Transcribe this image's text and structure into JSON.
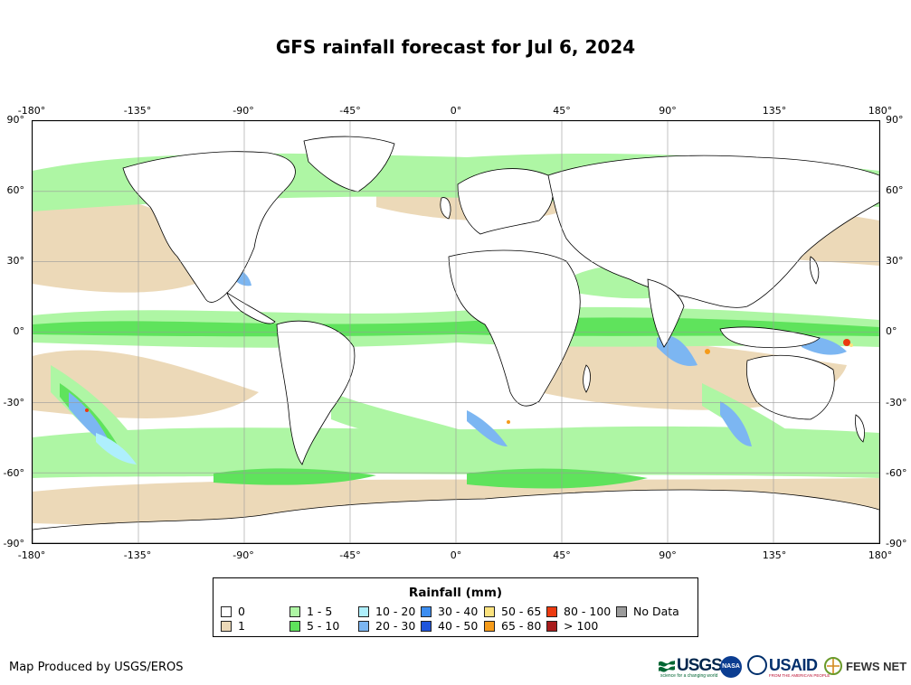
{
  "title": "GFS rainfall forecast for Jul 6, 2024",
  "axes": {
    "lon_range": [
      -180,
      180
    ],
    "lat_range": [
      -90,
      90
    ],
    "lon_ticks": [
      "-180°",
      "-135°",
      "-90°",
      "-45°",
      "0°",
      "45°",
      "90°",
      "135°",
      "180°"
    ],
    "lat_ticks": [
      "90°",
      "60°",
      "30°",
      "0°",
      "-30°",
      "-60°",
      "-90°"
    ],
    "grid": true
  },
  "legend": {
    "title": "Rainfall (mm)",
    "placement": "bottom-center",
    "items": [
      {
        "label": "0",
        "color": "#ffffff"
      },
      {
        "label": "1",
        "color": "#ecd9b8"
      },
      {
        "label": "1 - 5",
        "color": "#aef6a4"
      },
      {
        "label": "5 - 10",
        "color": "#5fe35c"
      },
      {
        "label": "10 - 20",
        "color": "#aeeffc"
      },
      {
        "label": "20 - 30",
        "color": "#7cb6f2"
      },
      {
        "label": "30 - 40",
        "color": "#3c8df0"
      },
      {
        "label": "40 - 50",
        "color": "#1f55dc"
      },
      {
        "label": "50 - 65",
        "color": "#fbe27e"
      },
      {
        "label": "65 - 80",
        "color": "#f59b1a"
      },
      {
        "label": "80 - 100",
        "color": "#ec3a10"
      },
      {
        "label": "> 100",
        "color": "#a81c1c"
      },
      {
        "label": "No Data",
        "color": "#9b9b9b"
      }
    ]
  },
  "credit": "Map Produced by USGS/EROS",
  "logos": {
    "usgs": {
      "word": "USGS",
      "tagline": "science for a changing world",
      "icon": "usgs-waves-icon"
    },
    "nasa": {
      "word": "NASA",
      "icon": "nasa-meatball-icon"
    },
    "usaid": {
      "word": "USAID",
      "tagline": "FROM THE AMERICAN PEOPLE",
      "icon": "usaid-seal-icon"
    },
    "fews": {
      "word": "FEWS NET",
      "icon": "fews-net-icon"
    }
  },
  "colors": {
    "ocean_background": "#ffffff",
    "land_fill": "#ffffff",
    "coastline": "#000000",
    "grid": "#9a9a9a"
  }
}
